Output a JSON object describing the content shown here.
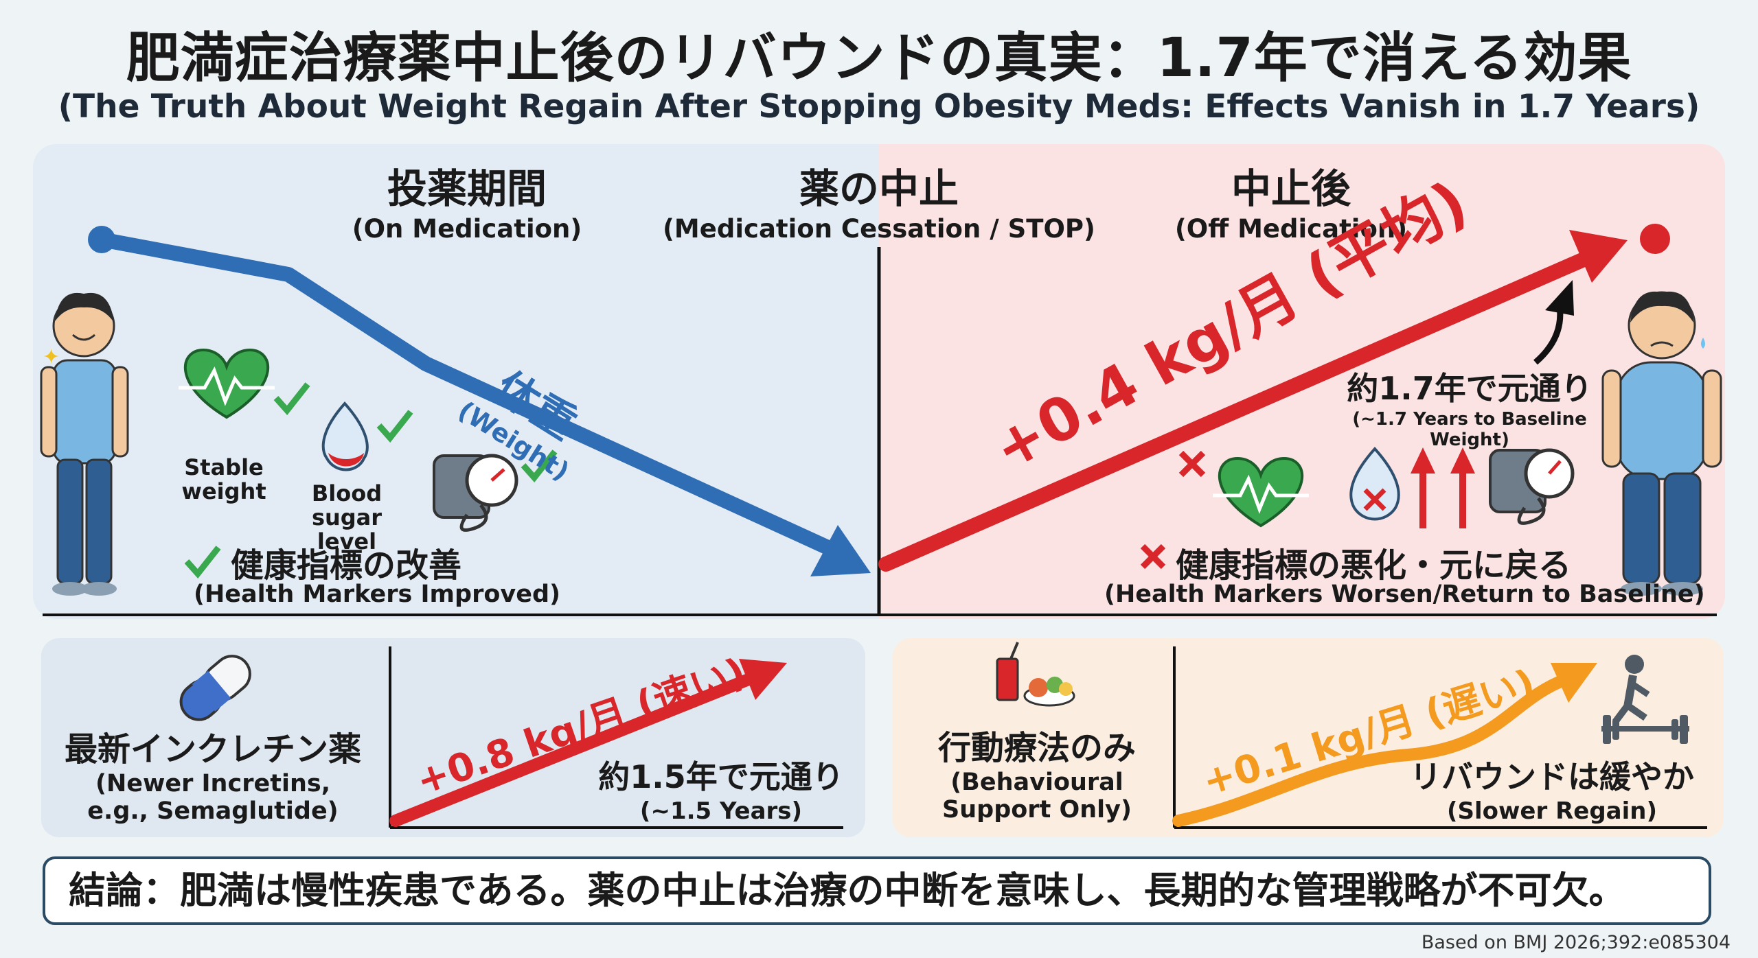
{
  "title_jp": "肥満症治療薬中止後のリバウンドの真実：1.7年で消える効果",
  "title_en": "(The Truth About Weight Regain After Stopping Obesity Meds: Effects Vanish in 1.7 Years)",
  "sections": {
    "on": {
      "jp": "投薬期間",
      "en": "(On Medication)"
    },
    "stop": {
      "jp": "薬の中止",
      "en": "(Medication Cessation / STOP)"
    },
    "off": {
      "jp": "中止後",
      "en": "(Off Medication)"
    }
  },
  "weight_label": {
    "jp": "体重",
    "en": "(Weight)"
  },
  "on_icons": {
    "heart": "Stable weight",
    "sugar": "Blood sugar level"
  },
  "improved": {
    "jp": "健康指標の改善",
    "en": "(Health Markers Improved)"
  },
  "regain": {
    "rate": "+0.4 kg/月 (平均)",
    "return_jp": "約1.7年で元通り",
    "return_en": "(~1.7 Years to Baseline Weight)"
  },
  "worsen": {
    "jp": "健康指標の悪化・元に戻る",
    "en": "(Health Markers Worsen/Return to Baseline)"
  },
  "incretin": {
    "name_jp": "最新インクレチン薬",
    "name_en1": "(Newer Incretins,",
    "name_en2": "e.g., Semaglutide)",
    "rate": "+0.8 kg/月 (速い)",
    "return_jp": "約1.5年で元通り",
    "return_en": "(~1.5 Years)"
  },
  "behavioural": {
    "name_jp": "行動療法のみ",
    "name_en1": "(Behavioural",
    "name_en2": "Support Only)",
    "rate": "+0.1 kg/月 (遅い)",
    "result_jp": "リバウンドは緩やか",
    "result_en": "(Slower Regain)"
  },
  "conclusion": "結論：肥満は慢性疾患である。薬の中止は治療の中断を意味し、長期的な管理戦略が不可欠。",
  "source": "Based on BMJ 2026;392:e085304",
  "colors": {
    "blue": "#2f6eb5",
    "red": "#d8262a",
    "orange": "#f39a1f",
    "green": "#3aa84e"
  }
}
